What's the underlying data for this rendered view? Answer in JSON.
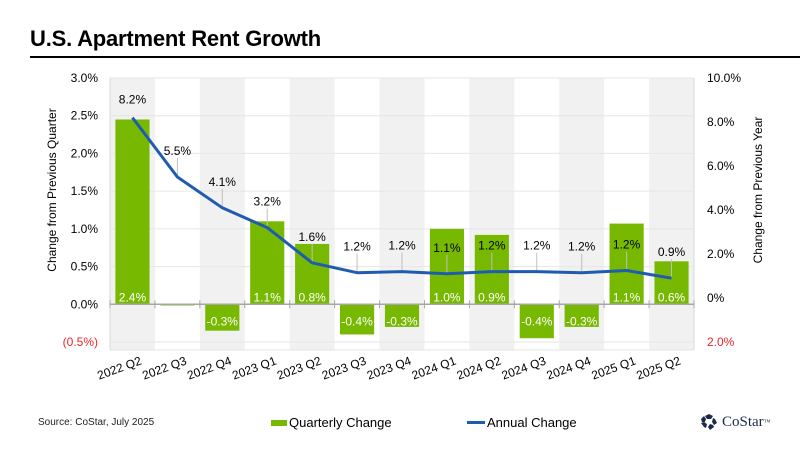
{
  "header": {
    "title": "U.S. Apartment Rent Growth"
  },
  "footer": {
    "source": "Source: CoStar, July 2025",
    "logo_text": "CoStar",
    "logo_icon": "costar-star-icon"
  },
  "colors": {
    "bar": "#76b900",
    "line": "#1f5cb0",
    "band": "#f1f1f1",
    "negative_tick": "#e8262b"
  },
  "chart_data": {
    "type": "bar+line",
    "title": "U.S. Apartment Rent Growth",
    "categories": [
      "2022 Q2",
      "2022 Q3",
      "2022 Q4",
      "2023 Q1",
      "2023 Q2",
      "2023 Q3",
      "2023 Q4",
      "2024 Q1",
      "2024 Q2",
      "2024 Q3",
      "2024 Q4",
      "2025 Q1",
      "2025 Q2"
    ],
    "series": [
      {
        "name": "Quarterly Change",
        "type": "bar",
        "axis": "left",
        "values": [
          2.45,
          -0.02,
          -0.35,
          1.1,
          0.8,
          -0.4,
          -0.3,
          1.0,
          0.92,
          -0.45,
          -0.3,
          1.07,
          0.57
        ],
        "labels": [
          "2.4%",
          "",
          "-0.3%",
          "1.1%",
          "0.8%",
          "-0.4%",
          "-0.3%",
          "1.0%",
          "0.9%",
          "-0.4%",
          "-0.3%",
          "1.1%",
          "0.6%"
        ]
      },
      {
        "name": "Annual Change",
        "type": "line",
        "axis": "right",
        "values": [
          8.2,
          5.5,
          4.1,
          3.2,
          1.6,
          1.15,
          1.2,
          1.1,
          1.2,
          1.2,
          1.15,
          1.25,
          0.9
        ],
        "labels": [
          "8.2%",
          "5.5%",
          "4.1%",
          "3.2%",
          "1.6%",
          "1.2%",
          "1.2%",
          "1.1%",
          "1.2%",
          "1.2%",
          "1.2%",
          "1.2%",
          "0.9%"
        ]
      }
    ],
    "y_left": {
      "label": "Change from Previous Quarter",
      "range": [
        -0.5,
        3.0
      ],
      "ticks": [
        3.0,
        2.5,
        2.0,
        1.5,
        1.0,
        0.5,
        0.0,
        -0.5
      ],
      "tick_labels": [
        "3.0%",
        "2.5%",
        "2.0%",
        "1.5%",
        "1.0%",
        "0.5%",
        "0.0%",
        "(0.5%)"
      ]
    },
    "y_right": {
      "label": "Change from Previous Year",
      "range": [
        -2.0,
        10.0
      ],
      "ticks": [
        10,
        8,
        6,
        4,
        2,
        0,
        -2
      ],
      "tick_labels": [
        "10.0%",
        "8.0%",
        "6.0%",
        "4.0%",
        "2.0%",
        "0%",
        "2.0%"
      ]
    },
    "grid": true,
    "legend": {
      "position": "bottom",
      "entries": [
        "Quarterly Change",
        "Annual Change"
      ]
    }
  }
}
